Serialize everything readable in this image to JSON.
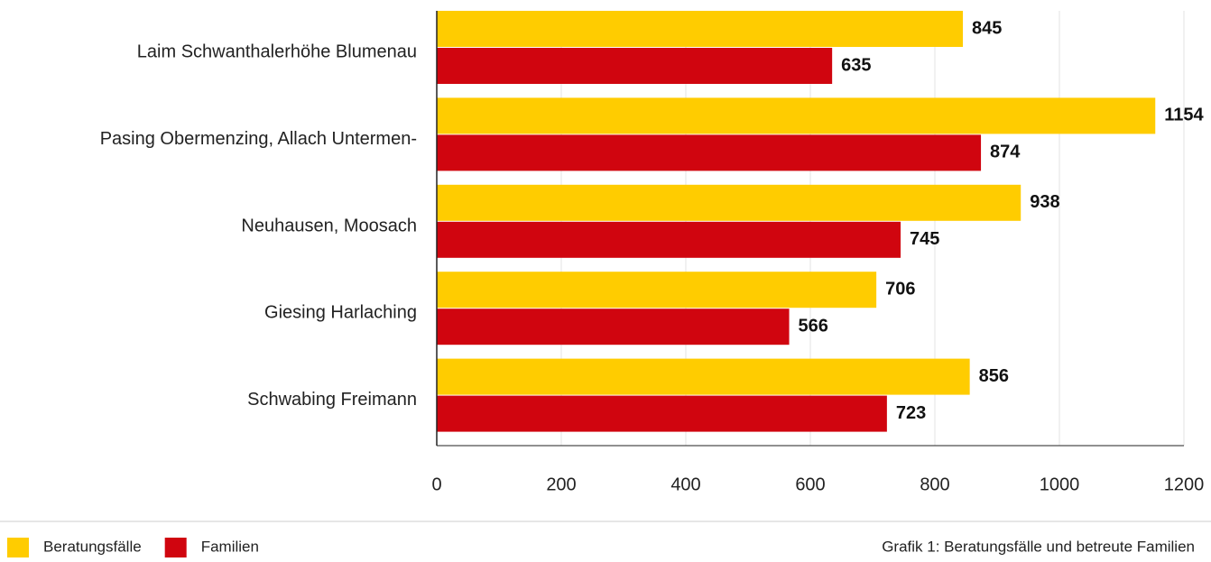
{
  "chart_data": {
    "type": "bar",
    "orientation": "horizontal",
    "categories": [
      "Laim Schwanthalerhöhe Blumenau",
      "Pasing Obermenzing, Allach Untermen-",
      "Neuhausen, Moosach",
      "Giesing Harlaching",
      "Schwabing Freimann"
    ],
    "series": [
      {
        "name": "Beratungsfälle",
        "color": "#ffcc00",
        "values": [
          845,
          1154,
          938,
          706,
          856
        ]
      },
      {
        "name": "Familien",
        "color": "#d0050f",
        "values": [
          635,
          874,
          745,
          566,
          723
        ]
      }
    ],
    "xlim": [
      0,
      1200
    ],
    "xticks": [
      0,
      200,
      400,
      600,
      800,
      1000,
      1200
    ],
    "grid": true,
    "legend": "bottom-left",
    "caption": "Grafik 1: Beratungsfälle und betreute Familien"
  }
}
